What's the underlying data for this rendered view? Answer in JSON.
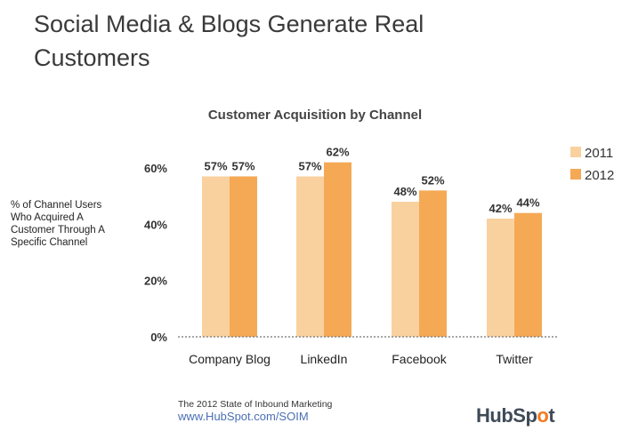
{
  "slide": {
    "title": "Social Media & Blogs Generate Real Customers"
  },
  "source": {
    "line1": "The 2012 State of Inbound Marketing",
    "url": "www.HubSpot.com/SOIM"
  },
  "brand": {
    "name_part1": "HubSp",
    "name_o": "o",
    "name_part2": "t"
  },
  "colors": {
    "series_2011": "#f9d19f",
    "series_2012": "#f5a955",
    "axis": "#888888"
  },
  "chart_data": {
    "type": "bar",
    "title": "Customer Acquisition by Channel",
    "ylabel": [
      "% of Channel Users",
      "Who Acquired A",
      "Customer Through A",
      "Specific Channel"
    ],
    "categories": [
      "Company Blog",
      "LinkedIn",
      "Facebook",
      "Twitter"
    ],
    "series": [
      {
        "name": "2011",
        "values": [
          57,
          57,
          48,
          42
        ],
        "labels": [
          "57%",
          "57%",
          "48%",
          "42%"
        ]
      },
      {
        "name": "2012",
        "values": [
          57,
          62,
          52,
          44
        ],
        "labels": [
          "57%",
          "62%",
          "52%",
          "44%"
        ]
      }
    ],
    "yticks": [
      0,
      20,
      40,
      60
    ],
    "ytick_labels": [
      "0%",
      "20%",
      "40%",
      "60%"
    ],
    "ylim": [
      0,
      66
    ],
    "legend_position": "top-right",
    "grid": false
  }
}
